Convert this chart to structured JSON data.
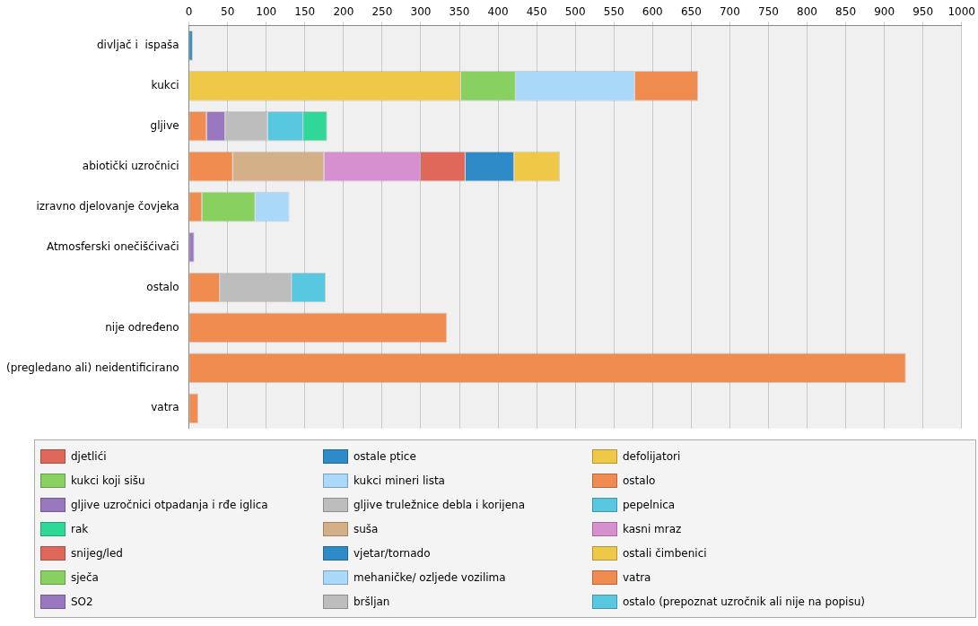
{
  "chart_data": {
    "type": "bar",
    "orientation": "horizontal",
    "stacked": true,
    "grid": "x",
    "legend": "bottom",
    "categories": [
      "divljač i  ispaša",
      "kukci",
      "gljive",
      "abiotički uzročnici",
      "izravno djelovanje čovjeka",
      "Atmosferski onečišćivači",
      "ostalo",
      "nije određeno",
      "(pregledano ali) neidentificirano",
      "vatra"
    ],
    "xlim": [
      0,
      1000
    ],
    "xticks": [
      0,
      50,
      100,
      150,
      200,
      250,
      300,
      350,
      400,
      450,
      500,
      550,
      600,
      650,
      700,
      750,
      800,
      850,
      900,
      950,
      1000
    ],
    "series": [
      {
        "name": "djetlići",
        "color": "#e0685a",
        "values": [
          null,
          null,
          null,
          null,
          null,
          null,
          null,
          null,
          null,
          null
        ]
      },
      {
        "name": "ostale ptice",
        "color": "#2f8ac8",
        "values": [
          5,
          null,
          null,
          null,
          null,
          null,
          null,
          null,
          null,
          null
        ]
      },
      {
        "name": "defolijatori",
        "color": "#f0c848",
        "values": [
          null,
          352,
          null,
          null,
          null,
          null,
          null,
          null,
          null,
          null
        ]
      },
      {
        "name": "kukci koji sišu",
        "color": "#88d060",
        "values": [
          null,
          71,
          null,
          null,
          null,
          null,
          null,
          null,
          null,
          null
        ]
      },
      {
        "name": "kukci mineri lista",
        "color": "#aad8f8",
        "values": [
          null,
          154,
          null,
          null,
          null,
          null,
          null,
          null,
          null,
          null
        ]
      },
      {
        "name": "ostalo",
        "color": "#f08c50",
        "values": [
          null,
          82,
          23,
          57,
          17,
          null,
          40,
          334,
          928,
          null
        ]
      },
      {
        "name": "gljive uzročnici otpadanja i rđe iglica",
        "color": "#9a78c0",
        "values": [
          null,
          null,
          24,
          null,
          null,
          null,
          null,
          null,
          null,
          null
        ]
      },
      {
        "name": "gljive truležnice debla i korijena",
        "color": "#bdbdbd",
        "values": [
          null,
          null,
          55,
          null,
          null,
          null,
          null,
          null,
          null,
          null
        ]
      },
      {
        "name": "pepelnica",
        "color": "#58c8e0",
        "values": [
          null,
          null,
          46,
          null,
          null,
          null,
          null,
          null,
          null,
          null
        ]
      },
      {
        "name": "rak",
        "color": "#30d898",
        "values": [
          null,
          null,
          31,
          null,
          null,
          null,
          null,
          null,
          null,
          null
        ]
      },
      {
        "name": "suša",
        "color": "#d4b088",
        "values": [
          null,
          null,
          null,
          118,
          null,
          null,
          null,
          null,
          null,
          null
        ]
      },
      {
        "name": "kasni mraz",
        "color": "#d690d0",
        "values": [
          null,
          null,
          null,
          125,
          null,
          null,
          null,
          null,
          null,
          null
        ]
      },
      {
        "name": "snijeg/led",
        "color": "#e0685a",
        "values": [
          null,
          null,
          null,
          58,
          null,
          null,
          null,
          null,
          null,
          null
        ]
      },
      {
        "name": "vjetar/tornado",
        "color": "#2f8ac8",
        "values": [
          null,
          null,
          null,
          63,
          null,
          null,
          null,
          null,
          null,
          null
        ]
      },
      {
        "name": "ostali čimbenici",
        "color": "#f0c848",
        "values": [
          null,
          null,
          null,
          59,
          null,
          null,
          null,
          null,
          null,
          null
        ]
      },
      {
        "name": "sječa",
        "color": "#88d060",
        "values": [
          null,
          null,
          null,
          null,
          69,
          null,
          null,
          null,
          null,
          null
        ]
      },
      {
        "name": "mehaničke/ ozljede vozilima",
        "color": "#aad8f8",
        "values": [
          null,
          null,
          null,
          null,
          44,
          null,
          null,
          null,
          null,
          null
        ]
      },
      {
        "name": "vatra",
        "color": "#f08c50",
        "values": [
          null,
          null,
          null,
          null,
          null,
          null,
          null,
          null,
          null,
          12
        ]
      },
      {
        "name": "SO2",
        "color": "#9a78c0",
        "values": [
          null,
          null,
          null,
          null,
          null,
          7,
          null,
          null,
          null,
          null
        ]
      },
      {
        "name": "bršljan",
        "color": "#bdbdbd",
        "values": [
          null,
          null,
          null,
          null,
          null,
          null,
          93,
          null,
          null,
          null
        ]
      },
      {
        "name": "ostalo (prepoznat uzročnik ali nije na popisu)",
        "color": "#58c8e0",
        "values": [
          null,
          null,
          null,
          null,
          null,
          null,
          44,
          null,
          null,
          null
        ]
      }
    ]
  }
}
